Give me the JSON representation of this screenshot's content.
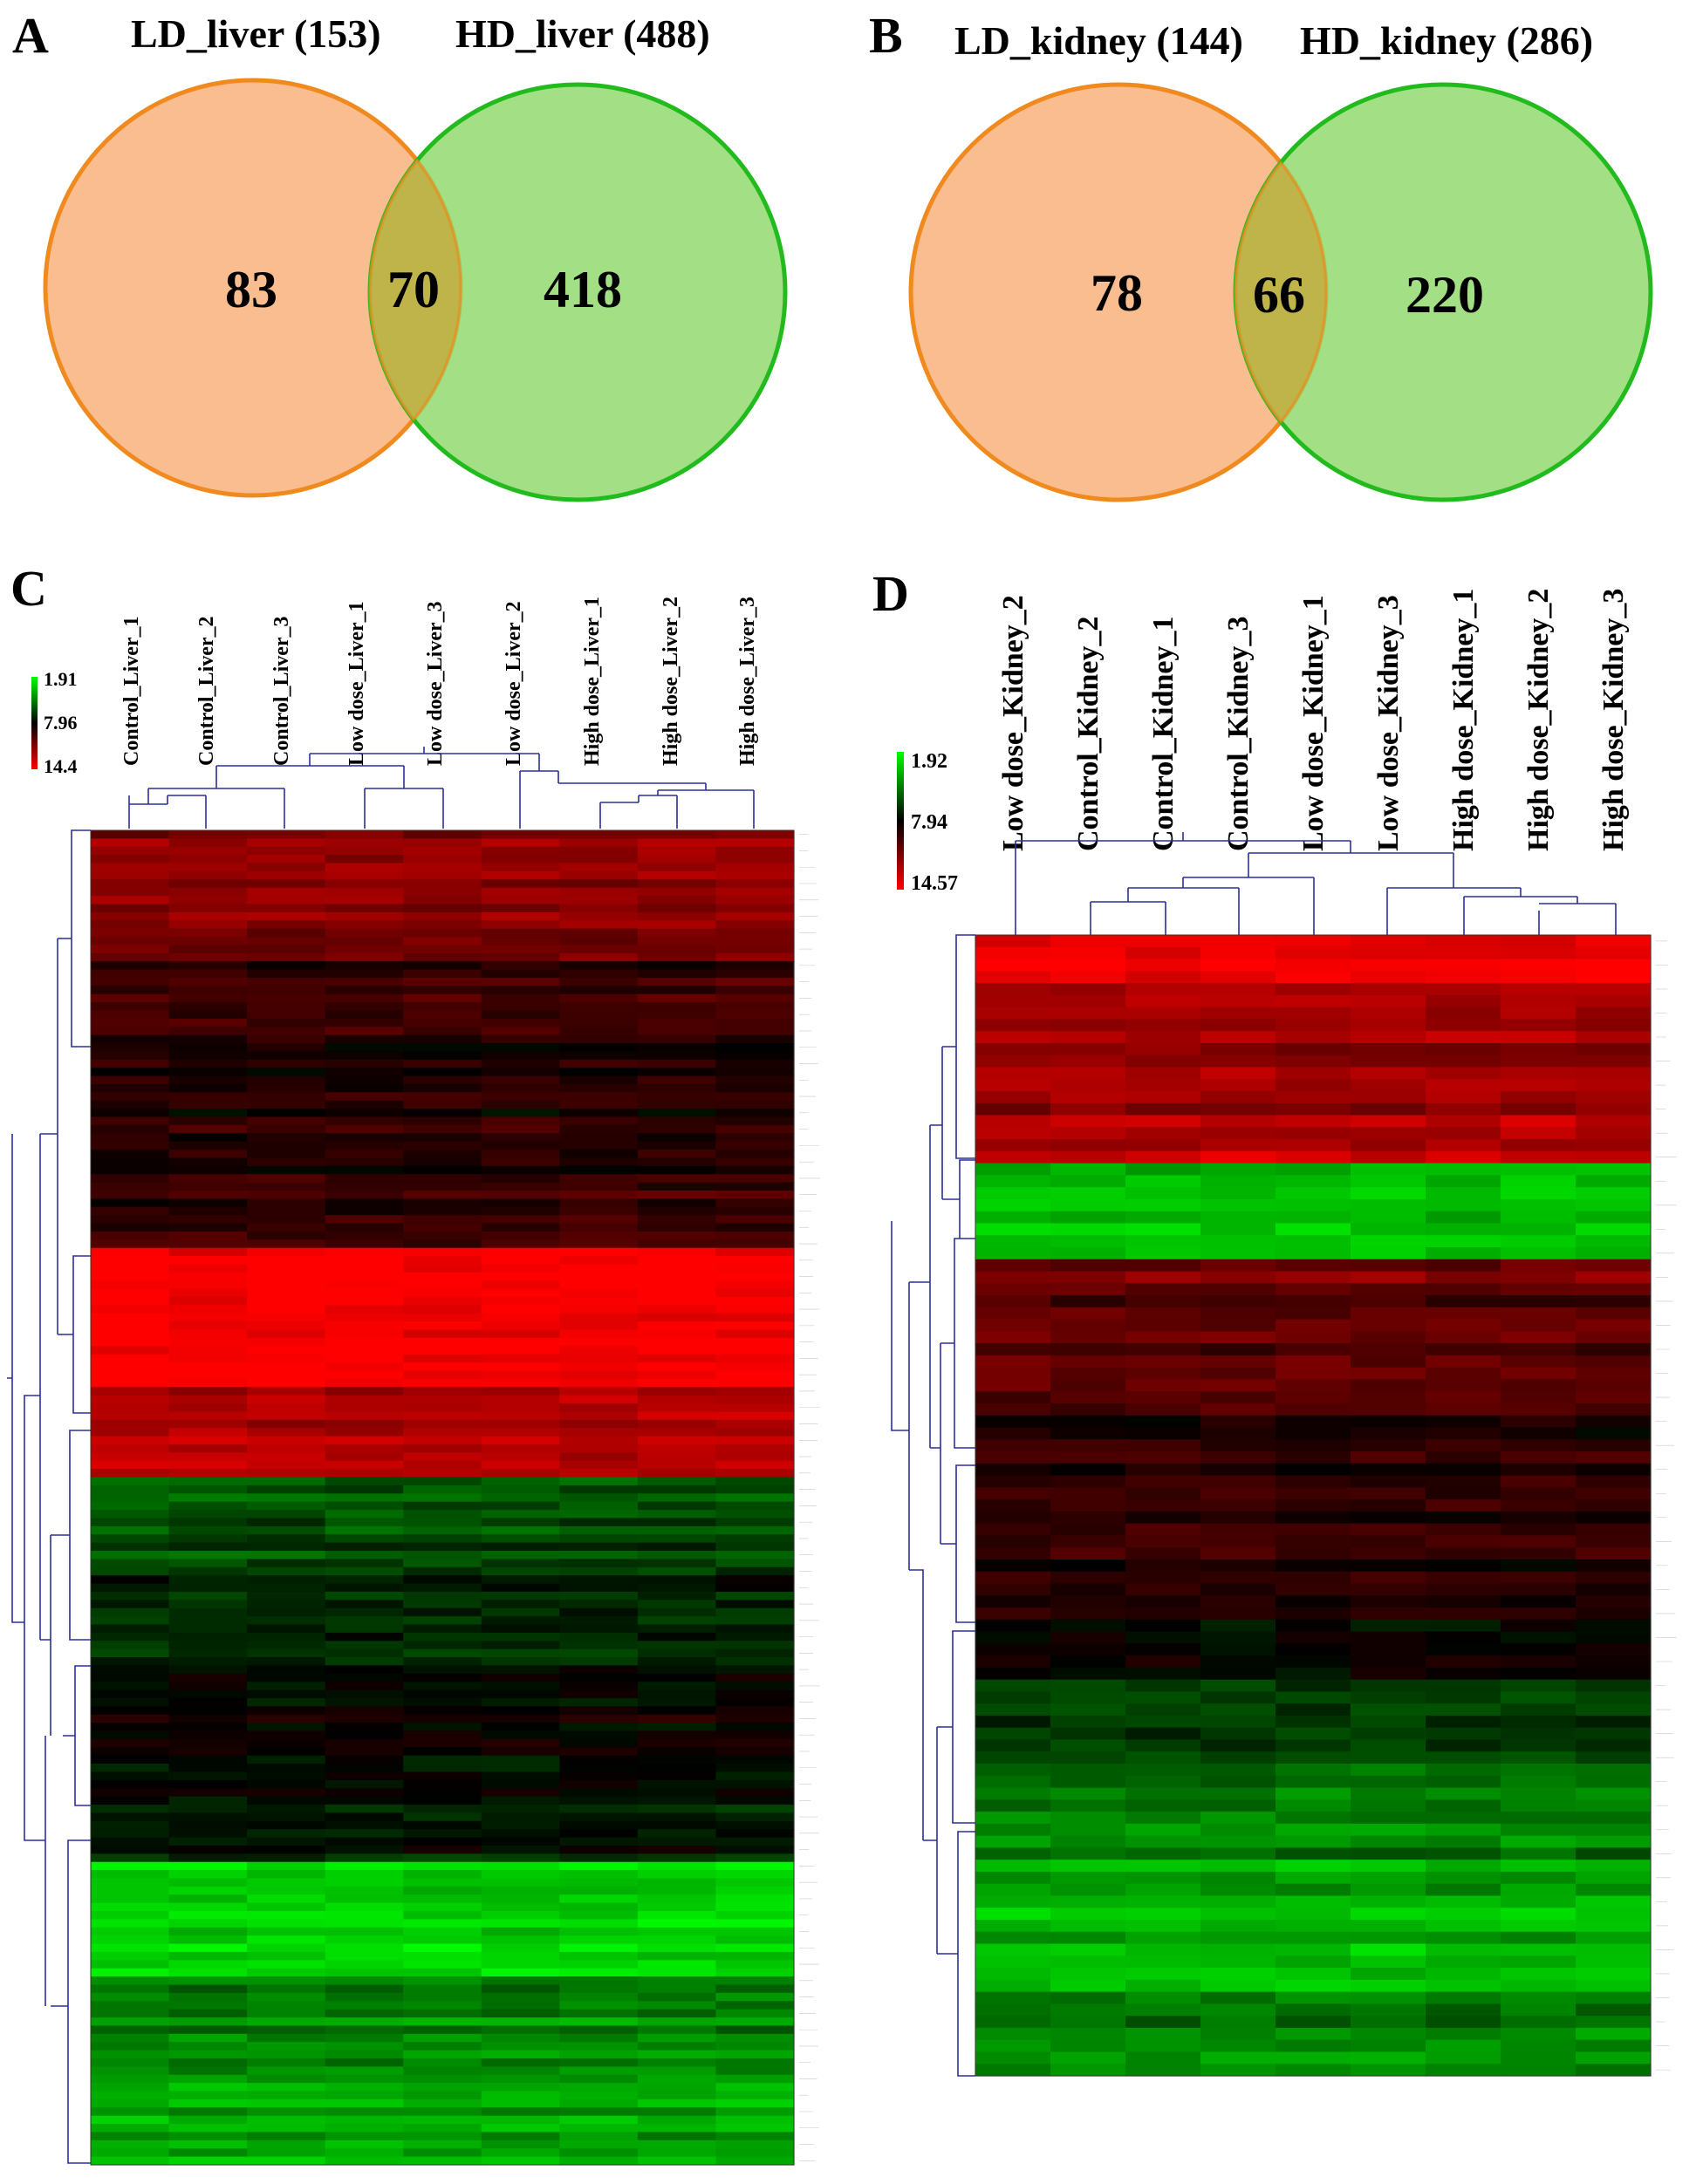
{
  "colors": {
    "orange_fill": "#f8b27c",
    "orange_stroke": "#f08a1e",
    "green_fill": "#8fd86a",
    "green_stroke": "#22bb1e",
    "overlap_fill": "#c2b046",
    "dendrogram": "#2b2f9a",
    "heat_low": "#00ff00",
    "heat_mid": "#000000",
    "heat_high": "#ff0000"
  },
  "chart_data": [
    {
      "panel": "A",
      "type": "venn",
      "sets": [
        {
          "name": "LD_liver",
          "size": 153,
          "label": "LD_liver (153)"
        },
        {
          "name": "HD_liver",
          "size": 488,
          "label": "HD_liver (488)"
        }
      ],
      "regions": {
        "only_first": "83",
        "overlap": "70",
        "only_second": "418"
      }
    },
    {
      "panel": "B",
      "type": "venn",
      "sets": [
        {
          "name": "LD_kidney",
          "size": 144,
          "label": "LD_kidney (144)"
        },
        {
          "name": "HD_kidney",
          "size": 286,
          "label": "HD_kidney (286)"
        }
      ],
      "regions": {
        "only_first": "78",
        "overlap": "66",
        "only_second": "220"
      }
    },
    {
      "panel": "C",
      "type": "heatmap",
      "columns": [
        "Control_Liver_1",
        "Control_Liver_2",
        "Control_Liver_3",
        "Low dose_Liver_1",
        "Low dose_Liver_3",
        "Low dose_Liver_2",
        "High dose_Liver_1",
        "High dose_Liver_2",
        "High dose_Liver_3"
      ],
      "legend": {
        "min": "1.91",
        "mid": "7.96",
        "max": "14.4"
      },
      "gene_rows": 488,
      "row_bands": [
        {
          "level": 0.78,
          "weight": 12
        },
        {
          "level": 0.72,
          "weight": 6
        },
        {
          "level": 0.62,
          "weight": 12
        },
        {
          "level": 0.56,
          "weight": 20
        },
        {
          "level": 0.6,
          "weight": 10
        },
        {
          "level": 0.97,
          "weight": 20
        },
        {
          "level": 0.86,
          "weight": 12
        },
        {
          "level": 0.35,
          "weight": 14
        },
        {
          "level": 0.42,
          "weight": 14
        },
        {
          "level": 0.52,
          "weight": 20
        },
        {
          "level": 0.44,
          "weight": 8
        },
        {
          "level": 0.08,
          "weight": 16
        },
        {
          "level": 0.24,
          "weight": 14
        },
        {
          "level": 0.18,
          "weight": 14
        }
      ]
    },
    {
      "panel": "D",
      "type": "heatmap",
      "columns": [
        "Low dose_Kidney_2",
        "Control_Kidney_2",
        "Control_Kidney_1",
        "Control_Kidney_3",
        "Low dose_Kidney_1",
        "Low dose_Kidney_3",
        "High dose_Kidney_1",
        "High dose_Kidney_2",
        "High dose_Kidney_3"
      ],
      "legend": {
        "min": "1.92",
        "mid": "7.94",
        "max": "14.57"
      },
      "gene_rows": 286,
      "row_bands": [
        {
          "level": 0.94,
          "weight": 5
        },
        {
          "level": 0.8,
          "weight": 14
        },
        {
          "level": 0.88,
          "weight": 5
        },
        {
          "level": 0.12,
          "weight": 10
        },
        {
          "level": 0.72,
          "weight": 4
        },
        {
          "level": 0.66,
          "weight": 14
        },
        {
          "level": 0.58,
          "weight": 18
        },
        {
          "level": 0.52,
          "weight": 10
        },
        {
          "level": 0.38,
          "weight": 10
        },
        {
          "level": 0.26,
          "weight": 10
        },
        {
          "level": 0.16,
          "weight": 14
        },
        {
          "level": 0.24,
          "weight": 10
        }
      ]
    }
  ]
}
